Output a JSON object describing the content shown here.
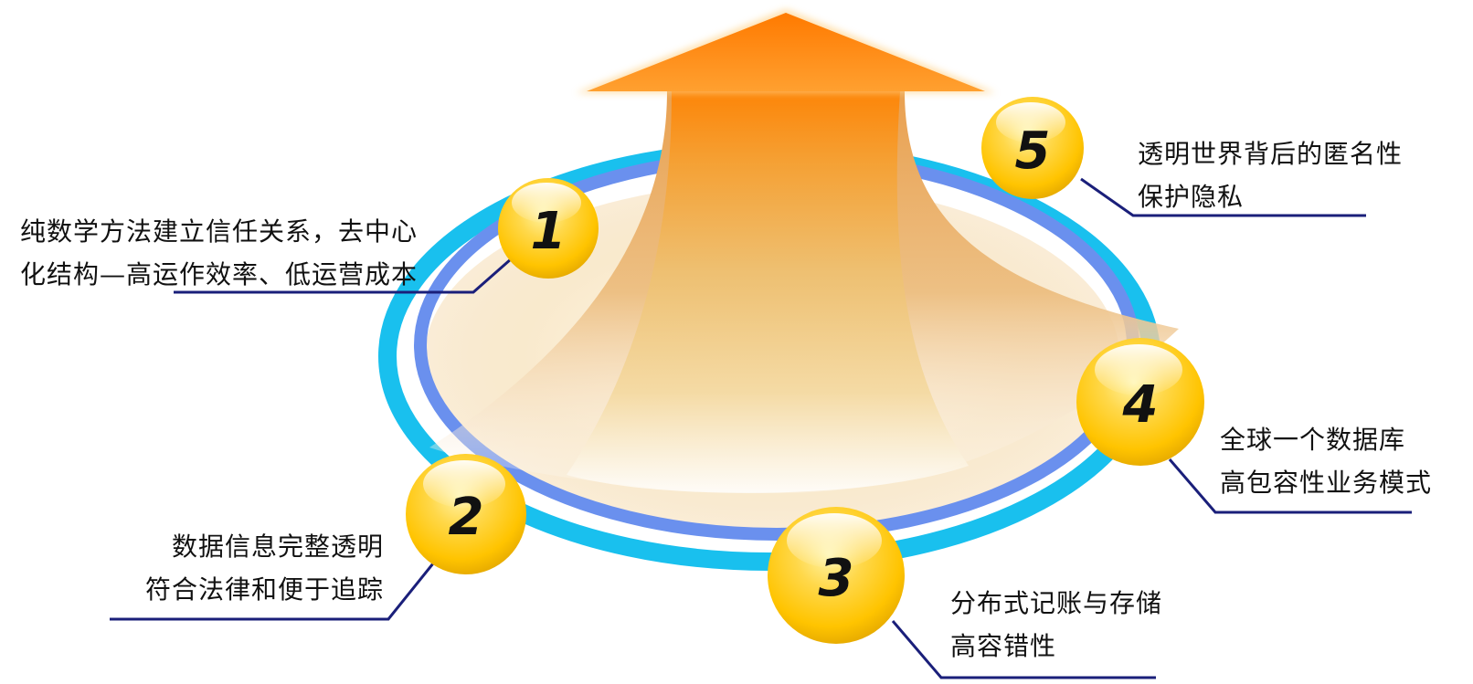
{
  "steps": [
    {
      "number": "1",
      "lines": [
        "纯数学方法建立信任关系，去中心",
        "化结构—高运作效率、低运营成本"
      ]
    },
    {
      "number": "2",
      "lines": [
        "数据信息完整透明",
        "符合法律和便于追踪"
      ]
    },
    {
      "number": "3",
      "lines": [
        "分布式记账与存储",
        "高容错性"
      ]
    },
    {
      "number": "4",
      "lines": [
        "全球一个数据库",
        "高包容性业务模式"
      ]
    },
    {
      "number": "5",
      "lines": [
        "透明世界背后的匿名性",
        "保护隐私"
      ]
    }
  ],
  "colors": {
    "arrow_top": "#ff8800",
    "arrow_mid": "#f0c878",
    "ring_outer": "#19c0ee",
    "ring_inner": "#6a90ee",
    "ball": "#ffcc00",
    "leader_line": "#1a1f7a"
  }
}
